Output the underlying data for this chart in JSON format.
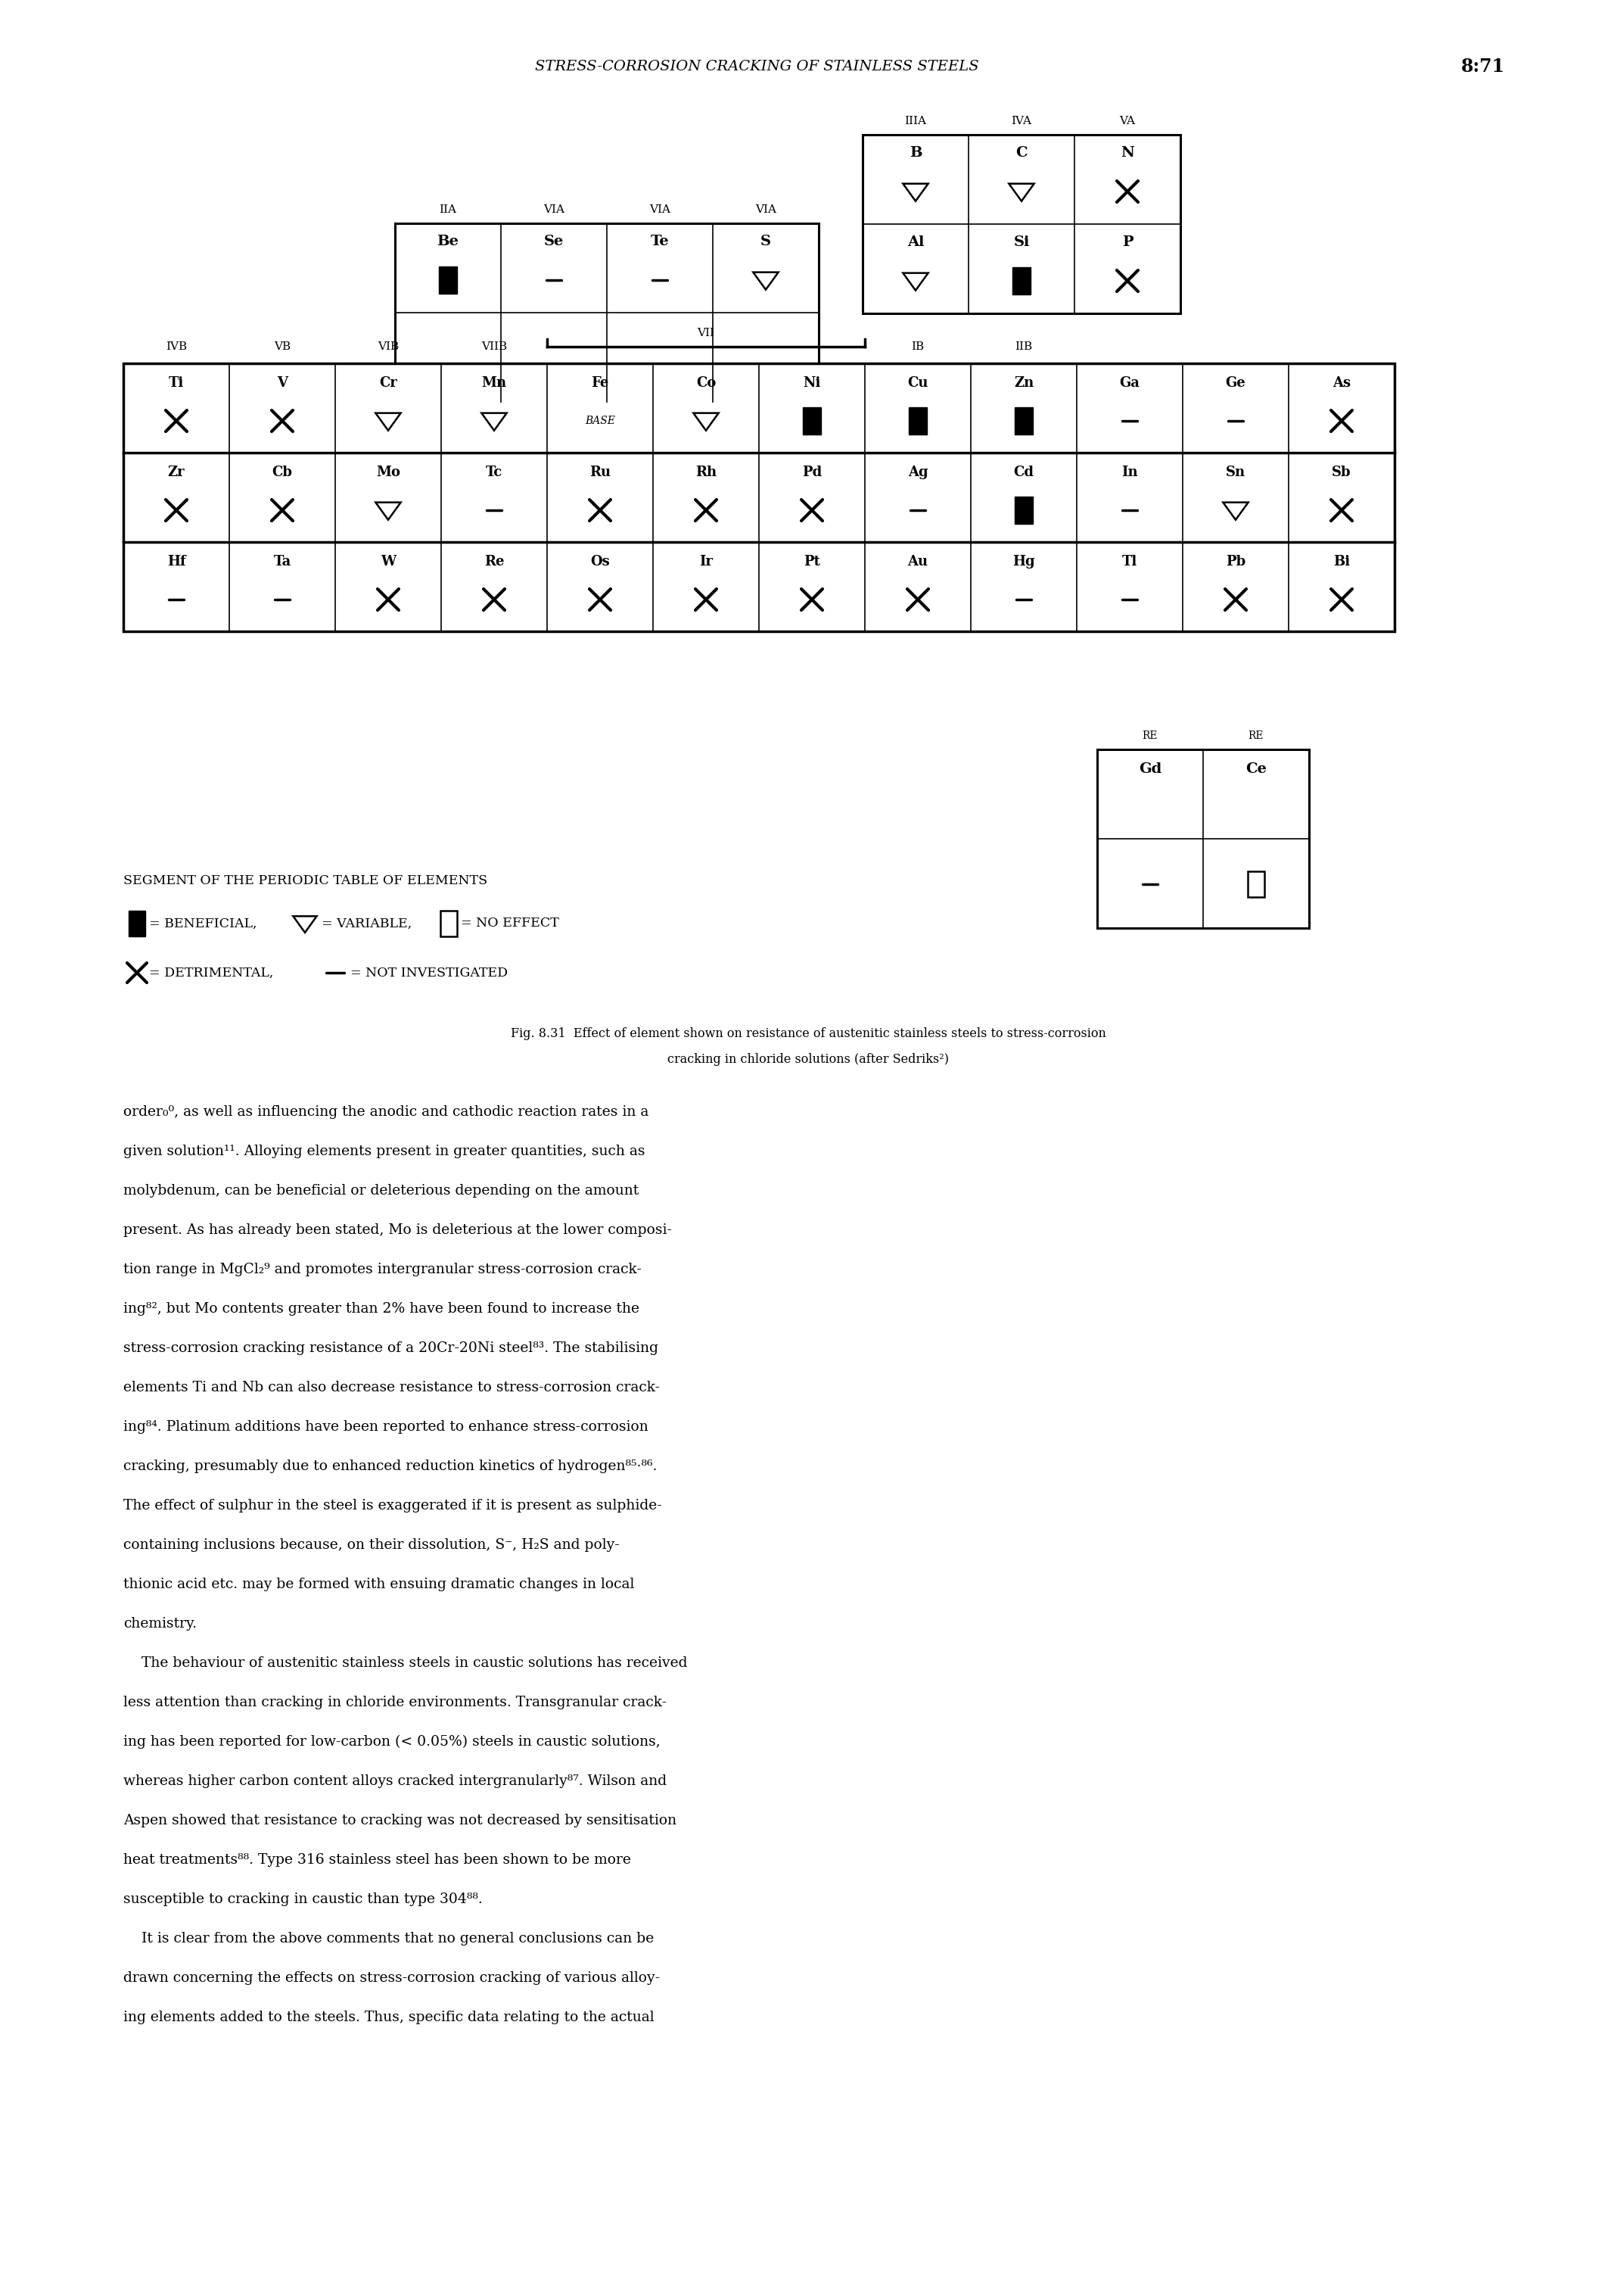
{
  "page_header": "STRESS-CORROSION CRACKING OF STAINLESS STEELS",
  "page_number": "8:71",
  "fig_caption_line1": "Fig. 8.31  Effect of element shown on resistance of austenitic stainless steels to stress-corrosion",
  "fig_caption_line2": "cracking in chloride solutions (after Sedriks²)",
  "segment_label": "SEGMENT OF THE PERIODIC TABLE OF ELEMENTS",
  "body_lines": [
    "order₀⁰, as well as influencing the anodic and cathodic reaction rates in a",
    "given solution₁¹. Alloying elements present in greater quantities, such as",
    "molybdenum, can be beneficial or deleterious depending on the amount",
    "present. As has already been stated, Mo is deleterious at the lower composi-",
    "tion range in MgCl₂⁹ and promotes intergranular stress-corrosion crack-",
    "ing₂², but Mo contents greater than 2% have been found to increase the",
    "stress-corrosion cracking resistance of a 20Cr-20Ni steel₃³. The stabilising",
    "elements Ti and Nb can also decrease resistance to stress-corrosion crack-",
    "ing₄⁴. Platinum additions have been reported to enhance stress-corrosion",
    "cracking, presumably due to enhanced reduction kinetics of hydrogen₅¹¸₆.",
    "The effect of sulphur in the steel is exaggerated if it is present as sulphide-",
    "containing inclusions because, on their dissolution, S⁻, H₂S and poly-",
    "thionic acid etc. may be formed with ensuing dramatic changes in local",
    "chemistry.",
    "    The behaviour of austenitic stainless steels in caustic solutions has received",
    "less attention than cracking in chloride environments. Transgranular crack-",
    "ing has been reported for low-carbon (< 0.05%) steels in caustic solutions,",
    "whereas higher carbon content alloys cracked intergranularly₇¹. Wilson and",
    "Aspen showed that resistance to cracking was not decreased by sensitisation",
    "heat treatments₇⁸. Type 316 stainless steel has been shown to be more",
    "susceptible to cracking in caustic than type 304₇⁸.",
    "    It is clear from the above comments that no general conclusions can be",
    "drawn concerning the effects on stress-corrosion cracking of various alloy-",
    "ing elements added to the steels. Thus, specific data relating to the actual"
  ]
}
